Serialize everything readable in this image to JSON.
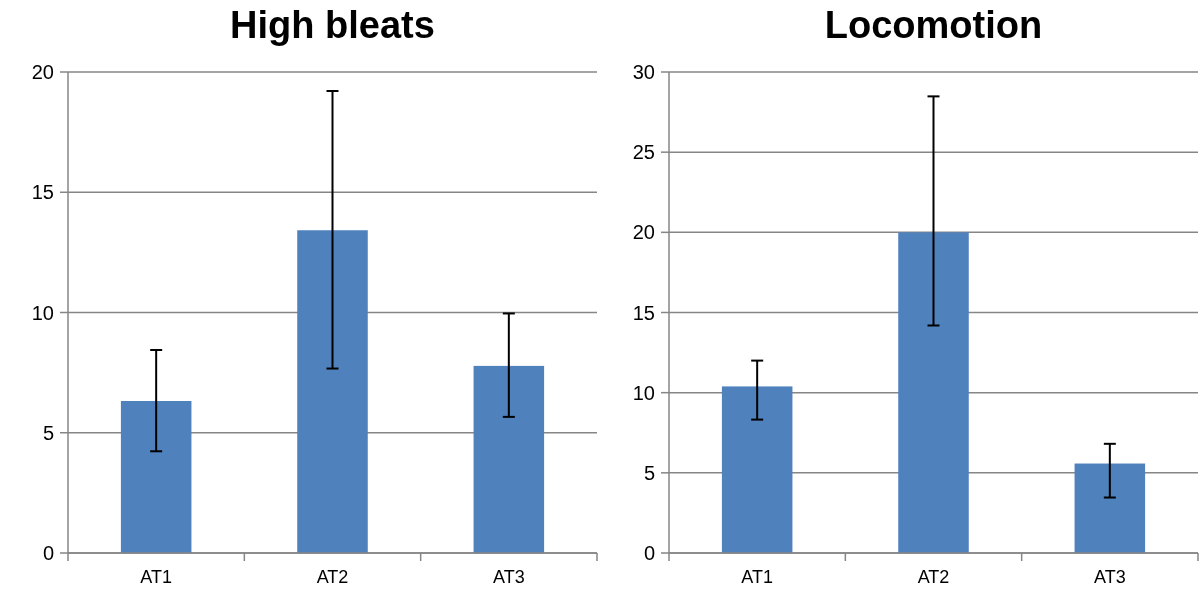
{
  "chart_data": [
    {
      "type": "bar",
      "title": "High bleats",
      "categories": [
        "AT1",
        "AT2",
        "AT3"
      ],
      "values": [
        6.32,
        13.42,
        7.78
      ],
      "errors": [
        [
          4.23,
          8.44
        ],
        [
          7.67,
          19.21
        ],
        [
          5.66,
          9.96
        ]
      ],
      "color": "#4f81bd",
      "ylim": [
        0,
        20
      ],
      "yticks": [
        0,
        5,
        10,
        15,
        20
      ],
      "grid": "y"
    },
    {
      "type": "bar",
      "title": "Locomotion",
      "categories": [
        "AT1",
        "AT2",
        "AT3"
      ],
      "values": [
        10.39,
        20,
        5.58
      ],
      "errors": [
        [
          8.32,
          12.0
        ],
        [
          14.19,
          28.48
        ],
        [
          3.46,
          6.81
        ]
      ],
      "color": "#4f81bd",
      "ylim": [
        0,
        30
      ],
      "yticks": [
        0,
        5,
        10,
        15,
        20,
        25,
        30
      ],
      "grid": "y"
    }
  ]
}
